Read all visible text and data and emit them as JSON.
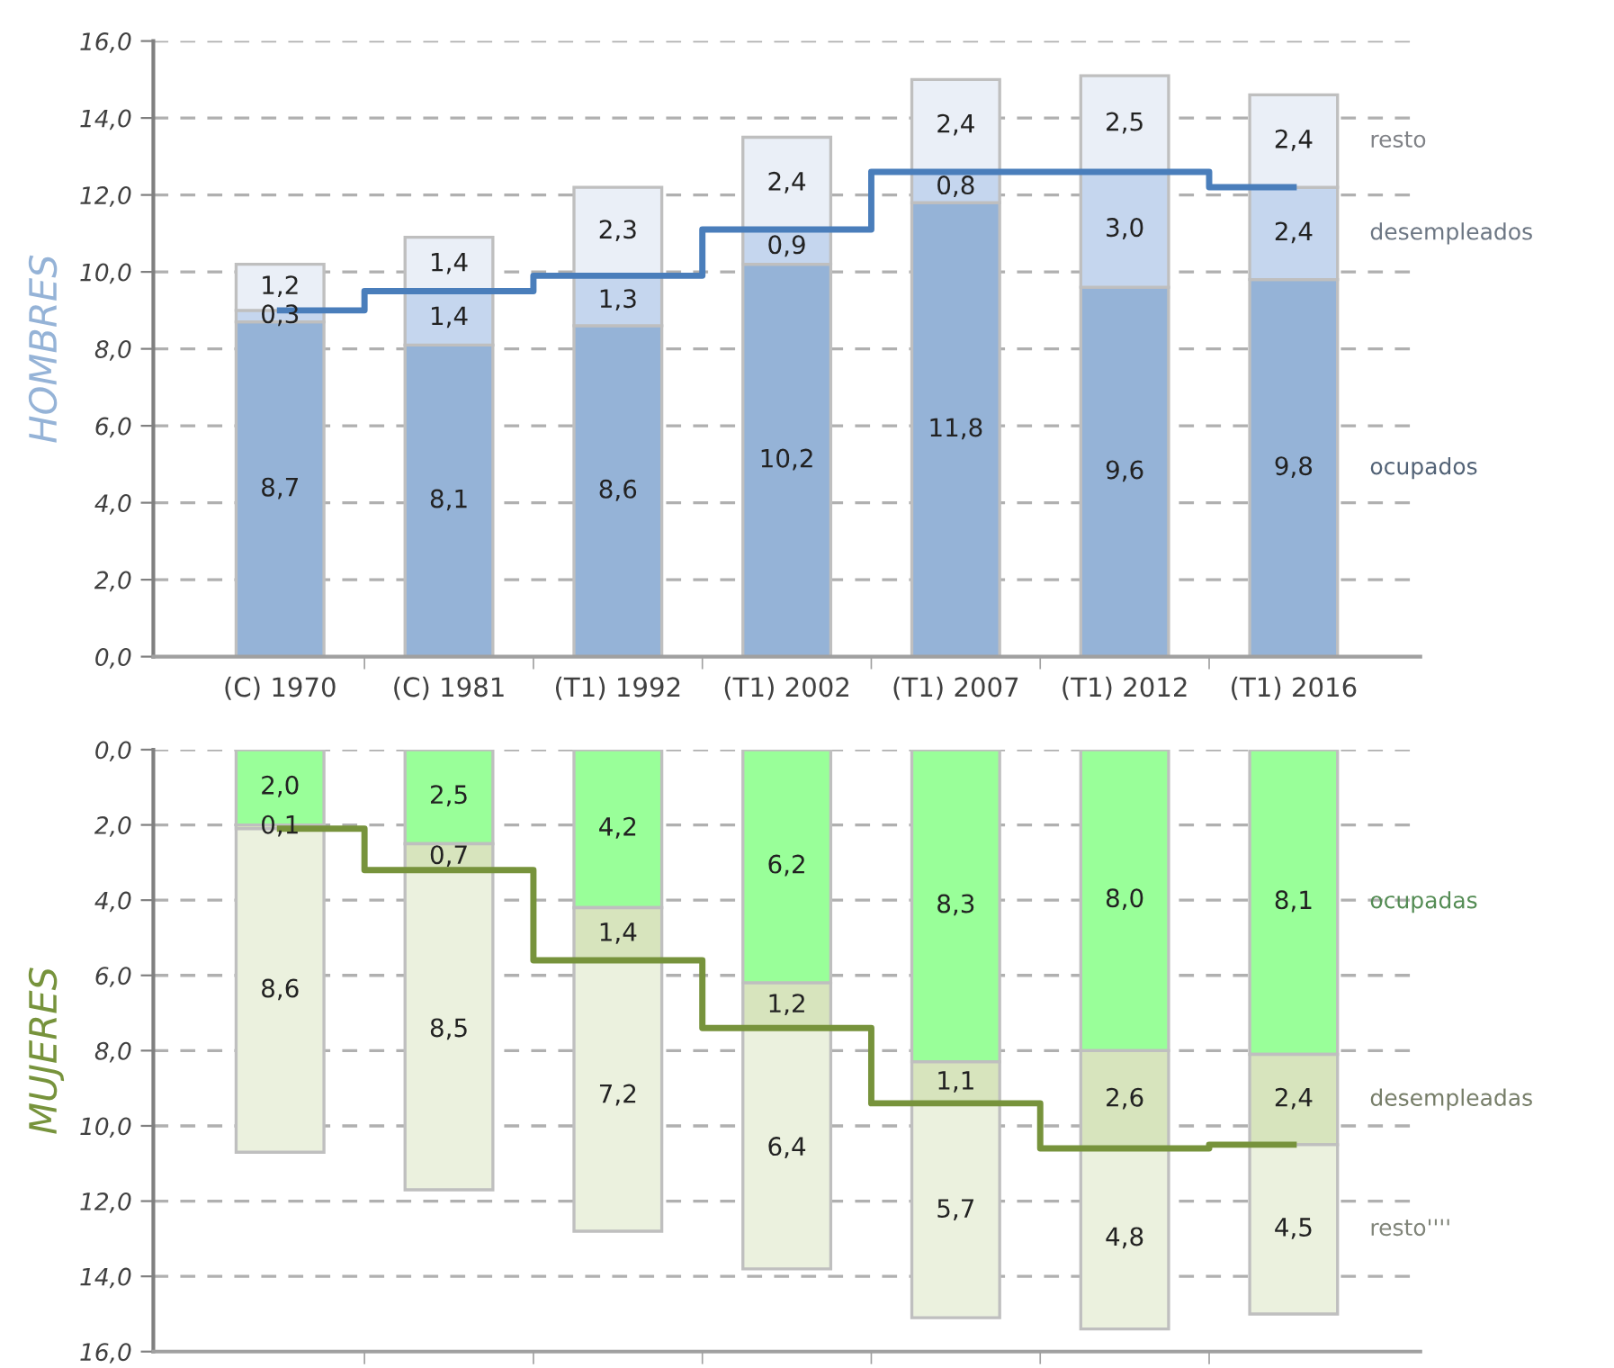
{
  "chart_data": [
    {
      "type": "bar",
      "stacked": true,
      "grid": "y",
      "legend": false,
      "ylabel": "HOMBRES",
      "categories": [
        "(C) 1970",
        "(C) 1981",
        "(T1) 1992",
        "(T1) 2002",
        "(T1) 2007",
        "(T1) 2012",
        "(T1) 2016"
      ],
      "ylim": [
        0,
        16
      ],
      "yticks": [
        {
          "value": 0,
          "label": "0,0"
        },
        {
          "value": 2,
          "label": "2,0"
        },
        {
          "value": 4,
          "label": "4,0"
        },
        {
          "value": 6,
          "label": "6,0"
        },
        {
          "value": 8,
          "label": "8,0"
        },
        {
          "value": 10,
          "label": "10,0"
        },
        {
          "value": 12,
          "label": "12,0"
        },
        {
          "value": 14,
          "label": "14,0"
        },
        {
          "value": 16,
          "label": "16,0"
        }
      ],
      "series": [
        {
          "name": "ocupados",
          "color": "#95b3d7",
          "values": [
            8.7,
            8.1,
            8.6,
            10.2,
            11.8,
            9.6,
            9.8
          ],
          "value_labels": [
            "8,7",
            "8,1",
            "8,6",
            "10,2",
            "11,8",
            "9,6",
            "9,8"
          ]
        },
        {
          "name": "desempleados",
          "color": "#c5d6ee",
          "values": [
            0.3,
            1.4,
            1.3,
            0.9,
            0.8,
            3.0,
            2.4
          ],
          "value_labels": [
            "0,3",
            "1,4",
            "1,3",
            "0,9",
            "0,8",
            "3,0",
            "2,4"
          ]
        },
        {
          "name": "resto",
          "color": "#eaeff7",
          "values": [
            1.2,
            1.4,
            2.3,
            2.4,
            2.4,
            2.5,
            2.4
          ],
          "value_labels": [
            "1,2",
            "1,4",
            "2,3",
            "2,4",
            "2,4",
            "2,5",
            "2,4"
          ]
        },
        {
          "type": "step",
          "color": "#4a7ebb",
          "values": [
            9.0,
            9.5,
            9.9,
            11.1,
            12.6,
            12.6,
            12.2
          ]
        }
      ]
    },
    {
      "type": "bar",
      "stacked": true,
      "grid": "y",
      "legend": false,
      "ylabel": "MUJERES",
      "tick_labels": "y",
      "categories": [
        null,
        null,
        null,
        null,
        null,
        null,
        null
      ],
      "ylim": [
        16,
        0
      ],
      "yticks": [
        {
          "value": 0,
          "label": "0,0"
        },
        {
          "value": 2,
          "label": "2,0"
        },
        {
          "value": 4,
          "label": "4,0"
        },
        {
          "value": 6,
          "label": "6,0"
        },
        {
          "value": 8,
          "label": "8,0"
        },
        {
          "value": 10,
          "label": "10,0"
        },
        {
          "value": 12,
          "label": "12,0"
        },
        {
          "value": 14,
          "label": "14,0"
        },
        {
          "value": 16,
          "label": "16,0"
        }
      ],
      "series": [
        {
          "name": "ocupadas",
          "color": "#99ff99",
          "values": [
            2.0,
            2.5,
            4.2,
            6.2,
            8.3,
            8.0,
            8.1
          ],
          "value_labels": [
            "2,0",
            "2,5",
            "4,2",
            "6,2",
            "8,3",
            "8,0",
            "8,1"
          ]
        },
        {
          "name": "desempleadas",
          "color": "#d7e4bd",
          "values": [
            0.1,
            0.7,
            1.4,
            1.2,
            1.1,
            2.6,
            2.4
          ],
          "value_labels": [
            "0,1",
            "0,7",
            "1,4",
            "1,2",
            "1,1",
            "2,6",
            "2,4"
          ]
        },
        {
          "name": "resto''''",
          "color": "#ebf1de",
          "values": [
            8.6,
            8.5,
            7.2,
            6.4,
            5.7,
            4.8,
            4.5
          ],
          "value_labels": [
            "8,6",
            "8,5",
            "7,2",
            "6,4",
            "5,7",
            "4,8",
            "4,5"
          ]
        },
        {
          "type": "step",
          "color": "#77933c",
          "values": [
            2.1,
            3.2,
            5.6,
            7.4,
            9.4,
            10.6,
            10.5
          ]
        }
      ]
    }
  ]
}
